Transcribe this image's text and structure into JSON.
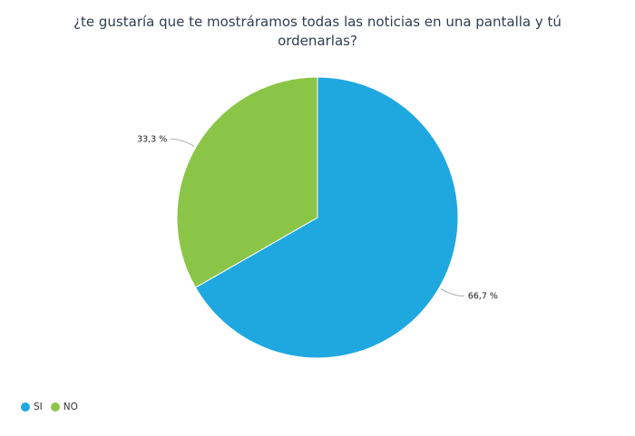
{
  "chart_data": {
    "type": "pie",
    "title": "¿te gustaría que te mostráramos todas las noticias en una pantalla y tú ordenarlas?",
    "categories": [
      "SI",
      "NO"
    ],
    "values": [
      66.7,
      33.3
    ],
    "labels": [
      "66,7 %",
      "33,3 %"
    ],
    "colors": [
      "#1fa8e0",
      "#8bc547"
    ],
    "legend_position": "bottom-left"
  }
}
